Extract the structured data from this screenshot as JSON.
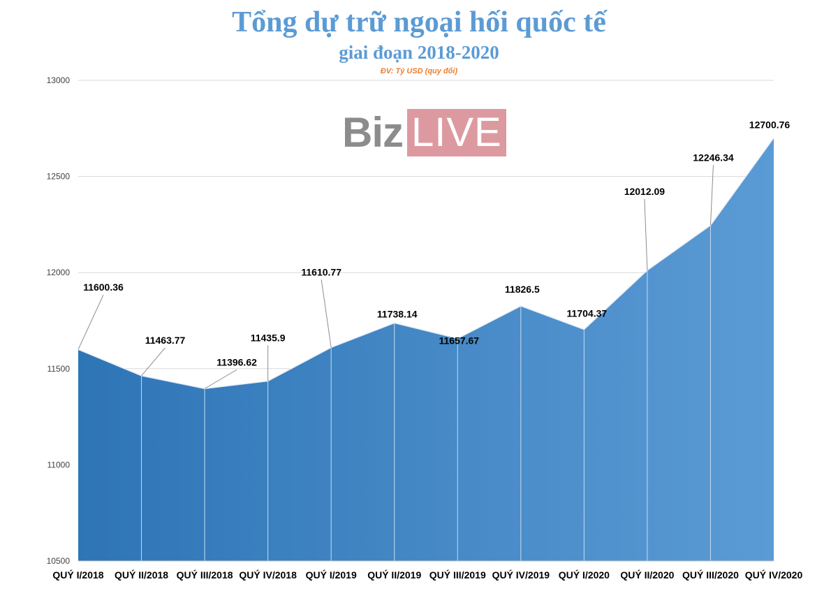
{
  "chart_data": {
    "type": "area",
    "title": "Tổng dự trữ ngoại hối quốc tế",
    "subtitle": "giai đoạn 2018-2020",
    "unit_note": "ĐV: Tỷ USD (quy đổi)",
    "categories": [
      "QUÝ I/2018",
      "QUÝ II/2018",
      "QUÝ III/2018",
      "QUÝ IV/2018",
      "QUÝ I/2019",
      "QUÝ II/2019",
      "QUÝ III/2019",
      "QUÝ IV/2019",
      "QUÝ I/2020",
      "QUÝ II/2020",
      "QUÝ III/2020",
      "QUÝ IV/2020"
    ],
    "values": [
      11600.36,
      11463.77,
      11396.62,
      11435.9,
      11610.77,
      11738.14,
      11657.67,
      11826.5,
      11704.37,
      12012.09,
      12246.34,
      12700.76
    ],
    "data_labels": [
      "11600.36",
      "11463.77",
      "11396.62",
      "11435.9",
      "11610.77",
      "11738.14",
      "11657.67",
      "11826.5",
      "11704.37",
      "12012.09",
      "12246.34",
      "12700.76"
    ],
    "ylim": [
      10500,
      13000
    ],
    "yticks": [
      10500,
      11000,
      11500,
      12000,
      12500,
      13000
    ],
    "grid": true,
    "legend": "none",
    "colors": {
      "fill_start": "#2e75b6",
      "fill_end": "#5b9bd5",
      "title": "#5b9bd5",
      "unit": "#ed7d31"
    }
  },
  "watermark": {
    "part1": "Biz",
    "part2": "LIVE"
  }
}
